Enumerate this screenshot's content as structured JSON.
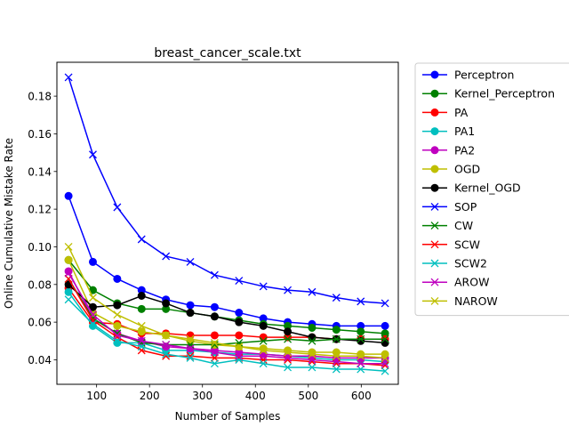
{
  "chart_data": {
    "type": "line",
    "title": "breast_cancer_scale.txt",
    "xlabel": "Number of Samples",
    "ylabel": "Online Cumulative Mistake Rate",
    "xlim": [
      25,
      670
    ],
    "ylim": [
      0.027,
      0.198
    ],
    "xticks": [
      100,
      200,
      300,
      400,
      500,
      600
    ],
    "yticks": [
      0.04,
      0.06,
      0.08,
      0.1,
      0.12,
      0.14,
      0.16,
      0.18
    ],
    "ytick_labels": [
      "0.04",
      "0.06",
      "0.08",
      "0.10",
      "0.12",
      "0.14",
      "0.16",
      "0.18"
    ],
    "grid": false,
    "legend_position": "outside-right",
    "x": [
      47,
      93,
      139,
      185,
      231,
      277,
      323,
      369,
      415,
      461,
      507,
      553,
      599,
      645
    ],
    "series": [
      {
        "name": "Perceptron",
        "color": "#0000ff",
        "marker": "circle",
        "values": [
          0.127,
          0.092,
          0.083,
          0.077,
          0.072,
          0.069,
          0.068,
          0.065,
          0.062,
          0.06,
          0.059,
          0.058,
          0.058,
          0.058
        ]
      },
      {
        "name": "Kernel_Perceptron",
        "color": "#008000",
        "marker": "circle",
        "values": [
          0.093,
          0.077,
          0.07,
          0.067,
          0.067,
          0.065,
          0.063,
          0.061,
          0.059,
          0.058,
          0.057,
          0.056,
          0.055,
          0.054
        ]
      },
      {
        "name": "PA",
        "color": "#ff0000",
        "marker": "circle",
        "values": [
          0.078,
          0.06,
          0.059,
          0.054,
          0.054,
          0.053,
          0.053,
          0.053,
          0.052,
          0.052,
          0.052,
          0.051,
          0.051,
          0.051
        ]
      },
      {
        "name": "PA1",
        "color": "#00bfbf",
        "marker": "circle",
        "values": [
          0.076,
          0.058,
          0.049,
          0.049,
          0.045,
          0.045,
          0.044,
          0.043,
          0.043,
          0.042,
          0.041,
          0.04,
          0.04,
          0.039
        ]
      },
      {
        "name": "PA2",
        "color": "#bf00bf",
        "marker": "circle",
        "values": [
          0.087,
          0.062,
          0.054,
          0.05,
          0.047,
          0.046,
          0.045,
          0.044,
          0.043,
          0.042,
          0.042,
          0.041,
          0.041,
          0.041
        ]
      },
      {
        "name": "OGD",
        "color": "#bfbf00",
        "marker": "circle",
        "values": [
          0.093,
          0.065,
          0.058,
          0.055,
          0.053,
          0.05,
          0.048,
          0.047,
          0.046,
          0.045,
          0.044,
          0.044,
          0.043,
          0.043
        ]
      },
      {
        "name": "Kernel_OGD",
        "color": "#000000",
        "marker": "circle",
        "values": [
          0.08,
          0.068,
          0.069,
          0.074,
          0.07,
          0.065,
          0.063,
          0.06,
          0.058,
          0.055,
          0.052,
          0.051,
          0.05,
          0.049
        ]
      },
      {
        "name": "SOP",
        "color": "#0000ff",
        "marker": "x",
        "values": [
          0.19,
          0.149,
          0.121,
          0.104,
          0.095,
          0.092,
          0.085,
          0.082,
          0.079,
          0.077,
          0.076,
          0.073,
          0.071,
          0.07
        ]
      },
      {
        "name": "CW",
        "color": "#008000",
        "marker": "x",
        "values": [
          0.083,
          0.062,
          0.054,
          0.049,
          0.048,
          0.048,
          0.048,
          0.049,
          0.05,
          0.051,
          0.05,
          0.051,
          0.051,
          0.051
        ]
      },
      {
        "name": "SCW",
        "color": "#ff0000",
        "marker": "x",
        "values": [
          0.083,
          0.061,
          0.052,
          0.045,
          0.042,
          0.042,
          0.041,
          0.041,
          0.04,
          0.04,
          0.039,
          0.038,
          0.038,
          0.037
        ]
      },
      {
        "name": "SCW2",
        "color": "#00bfbf",
        "marker": "x",
        "values": [
          0.072,
          0.059,
          0.05,
          0.047,
          0.043,
          0.041,
          0.038,
          0.04,
          0.038,
          0.036,
          0.036,
          0.035,
          0.035,
          0.034
        ]
      },
      {
        "name": "AROW",
        "color": "#bf00bf",
        "marker": "x",
        "values": [
          0.086,
          0.064,
          0.053,
          0.05,
          0.048,
          0.046,
          0.044,
          0.042,
          0.042,
          0.041,
          0.04,
          0.039,
          0.038,
          0.038
        ]
      },
      {
        "name": "NAROW",
        "color": "#bfbf00",
        "marker": "x",
        "values": [
          0.1,
          0.073,
          0.064,
          0.058,
          0.053,
          0.051,
          0.049,
          0.047,
          0.045,
          0.044,
          0.043,
          0.042,
          0.042,
          0.041
        ]
      }
    ]
  }
}
